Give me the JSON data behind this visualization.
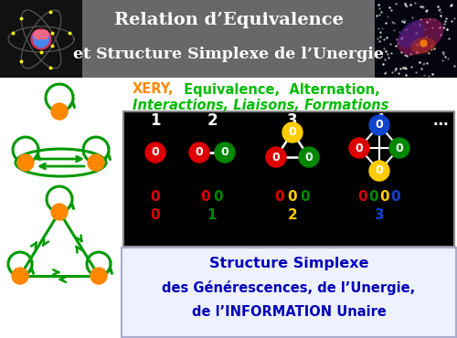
{
  "title_line1": "Relation d’Equivalence",
  "title_line2": "et Structure Simplexe de l’Unergie",
  "header_bg": "#686868",
  "node_colors": {
    "red": "#dd0000",
    "green": "#008800",
    "yellow": "#ffcc00",
    "blue": "#1144cc",
    "orange": "#ff8800"
  },
  "xery_color": "#ff8800",
  "keywords_color": "#00bb00",
  "bottom_text_color": "#0000bb",
  "bottom_text_line1": "Structure Simplexe",
  "bottom_text_line2": "des Générescences, de l’Unergie,",
  "bottom_text_line3": "de l’INFORMATION Unaire",
  "dark_green": "#009900",
  "white": "#ffffff",
  "black": "#000000"
}
